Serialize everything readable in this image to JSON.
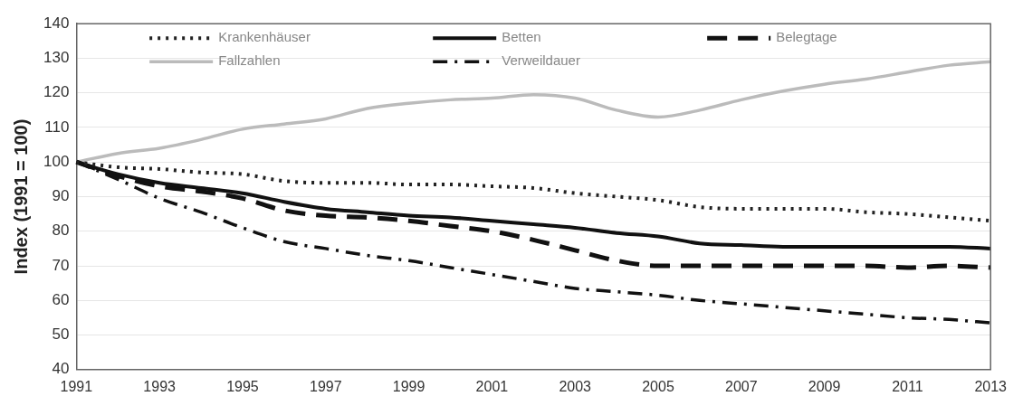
{
  "chart_data": {
    "type": "line",
    "ylabel": "Index (1991 = 100)",
    "categories": [
      "1991",
      null,
      "1993",
      null,
      "1995",
      null,
      "1997",
      null,
      "1999",
      null,
      "2001",
      null,
      "2003",
      null,
      "2005",
      null,
      "2007",
      null,
      "2009",
      null,
      "2011",
      null,
      "2013"
    ],
    "ylim": [
      40,
      140
    ],
    "yticks": [
      40,
      50,
      60,
      70,
      80,
      90,
      100,
      110,
      120,
      130,
      140
    ],
    "grid": "y",
    "legend": "top",
    "marker": "none",
    "series": [
      {
        "name": "Krankenhäuser",
        "color": "#222222",
        "line_style": "dotted",
        "values": [
          100,
          98.5,
          98,
          97,
          96.5,
          94.5,
          94,
          94,
          93.5,
          93.5,
          93,
          92.5,
          91,
          90,
          89,
          87,
          86.5,
          86.5,
          86.5,
          85.5,
          85,
          84,
          83
        ]
      },
      {
        "name": "Betten",
        "color": "#111111",
        "line_style": "solid",
        "values": [
          100,
          96.5,
          94,
          92.5,
          91,
          88.5,
          86.5,
          85.5,
          84.5,
          84,
          83,
          82,
          81,
          79.5,
          78.5,
          76.5,
          76,
          75.5,
          75.5,
          75.5,
          75.5,
          75.5,
          75
        ]
      },
      {
        "name": "Belegtage",
        "color": "#111111",
        "line_style": "dashed",
        "values": [
          100,
          96,
          93,
          91.5,
          89.5,
          86,
          84.5,
          84,
          83,
          81.5,
          80,
          77.5,
          74.5,
          71.5,
          70,
          70,
          70,
          70,
          70,
          70,
          69.5,
          70,
          69.5
        ]
      },
      {
        "name": "Fallzahlen",
        "color": "#bbbbbb",
        "line_style": "solid",
        "values": [
          100,
          102.5,
          104,
          106.5,
          109.5,
          111,
          112.5,
          115.5,
          117,
          118,
          118.5,
          119.5,
          118.5,
          115,
          113,
          115,
          118,
          120.5,
          122.5,
          124,
          126,
          128,
          129
        ]
      },
      {
        "name": "Verweildauer",
        "color": "#111111",
        "line_style": "dashdot",
        "values": [
          100,
          95,
          89.5,
          85.5,
          81,
          77,
          75,
          73,
          71.5,
          69.5,
          67.5,
          65.5,
          63.5,
          62.5,
          61.5,
          60,
          59,
          58,
          57,
          56,
          55,
          54.5,
          53.5
        ]
      }
    ]
  }
}
